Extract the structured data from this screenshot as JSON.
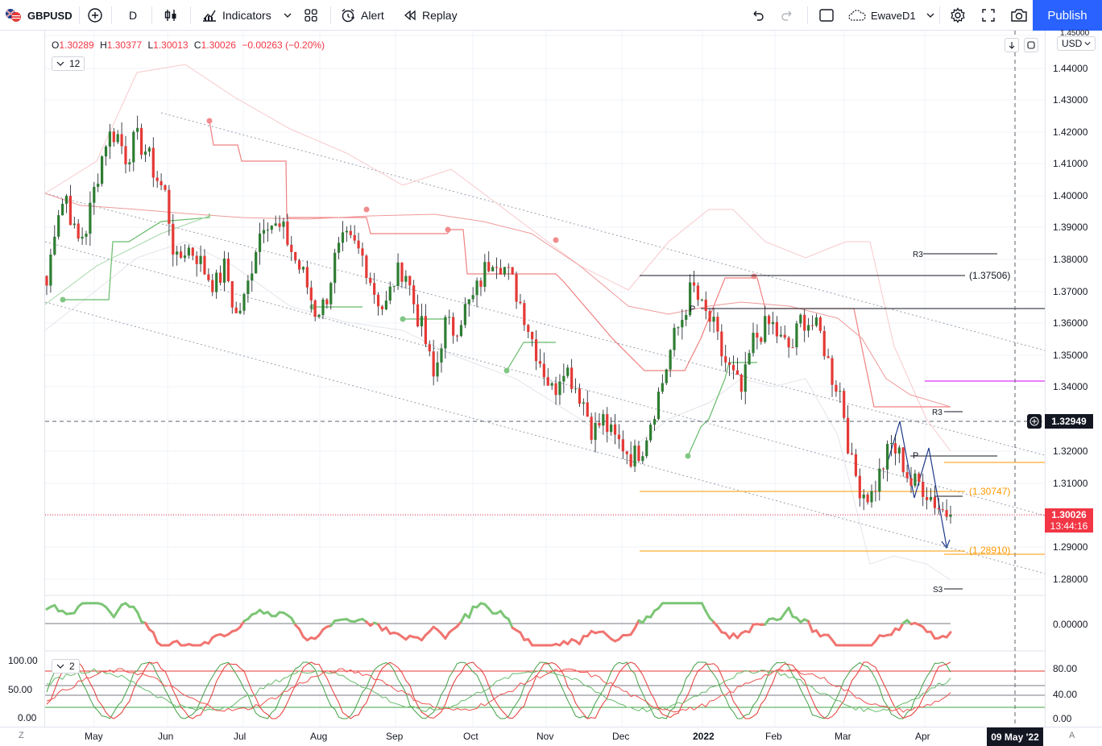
{
  "toolbar": {
    "symbol": "GBPUSD",
    "interval": "D",
    "indicators_label": "Indicators",
    "alert_label": "Alert",
    "replay_label": "Replay",
    "layout_name": "EwaveD1",
    "publish_label": "Publish"
  },
  "legend": {
    "open_key": "O",
    "open": "1.30289",
    "high_key": "H",
    "high": "1.30377",
    "low_key": "L",
    "low": "1.30013",
    "close_key": "C",
    "close": "1.30026",
    "change": "−0.00263 (−0.20%)",
    "count_badge": "12",
    "osc_badge": "2"
  },
  "price_axis": {
    "currency": "USD",
    "labels": [
      "1.45000",
      "1.44000",
      "1.43000",
      "1.42000",
      "1.41000",
      "1.40000",
      "1.39000",
      "1.38000",
      "1.37000",
      "1.36000",
      "1.35000",
      "1.34000",
      "1.33000",
      "1.32000",
      "1.31000",
      "1.30000",
      "1.29000",
      "1.28000"
    ],
    "crosshair_price": "1.32949",
    "last_price": "1.30026",
    "countdown": "13:44:16"
  },
  "osc_axis": {
    "label": "0.00000"
  },
  "stoch_axis": {
    "right_labels": [
      "80.00",
      "40.00",
      "0.00"
    ],
    "left_labels": [
      "100.00",
      "50.00",
      "0.00"
    ]
  },
  "time_axis": {
    "labels": [
      "May",
      "Jun",
      "Jul",
      "Aug",
      "Sep",
      "Oct",
      "Nov",
      "Dec",
      "2022",
      "Feb",
      "Mar",
      "Apr"
    ],
    "crosshair_date": "09 May '22"
  },
  "annotations": {
    "fib_1": "(1.37506)",
    "fib_2": "(1.30747)",
    "fib_3": "(1.28910)",
    "pivot_1": "P",
    "pivot_2": "P",
    "r3_1": "R3",
    "r3_2": "R3",
    "s3": "S3"
  },
  "chart_data": {
    "type": "candlestick",
    "symbol": "GBPUSD",
    "timeframe": "D",
    "y_range": [
      1.275,
      1.45
    ],
    "x_range": [
      "Apr 2021",
      "May 2022"
    ],
    "months": [
      "May",
      "Jun",
      "Jul",
      "Aug",
      "Sep",
      "Oct",
      "Nov",
      "Dec",
      "2022",
      "Feb",
      "Mar",
      "Apr"
    ],
    "ohlc_last": {
      "open": 1.30289,
      "high": 1.30377,
      "low": 1.30013,
      "close": 1.30026
    },
    "price_path": [
      1.372,
      1.395,
      1.4,
      1.385,
      1.39,
      1.405,
      1.418,
      1.42,
      1.412,
      1.418,
      1.414,
      1.406,
      1.4,
      1.378,
      1.384,
      1.382,
      1.376,
      1.372,
      1.378,
      1.362,
      1.368,
      1.384,
      1.394,
      1.39,
      1.388,
      1.38,
      1.374,
      1.364,
      1.366,
      1.38,
      1.386,
      1.384,
      1.38,
      1.37,
      1.364,
      1.374,
      1.378,
      1.366,
      1.356,
      1.342,
      1.36,
      1.358,
      1.364,
      1.368,
      1.376,
      1.382,
      1.378,
      1.372,
      1.364,
      1.354,
      1.346,
      1.338,
      1.348,
      1.342,
      1.336,
      1.326,
      1.33,
      1.324,
      1.322,
      1.318,
      1.322,
      1.332,
      1.342,
      1.354,
      1.362,
      1.372,
      1.364,
      1.36,
      1.35,
      1.344,
      1.338,
      1.354,
      1.358,
      1.36,
      1.354,
      1.352,
      1.362,
      1.36,
      1.356,
      1.344,
      1.338,
      1.316,
      1.308,
      1.306,
      1.314,
      1.322,
      1.318,
      1.31,
      1.31,
      1.306,
      1.302,
      1.3003
    ],
    "levels": [
      {
        "label": "(1.37506)",
        "value": 1.37506
      },
      {
        "label": "(1.30747)",
        "value": 1.30747
      },
      {
        "label": "(1.28910)",
        "value": 1.2891
      },
      {
        "label": "1.32949",
        "value": 1.32949
      },
      {
        "label": "1.30026",
        "value": 1.30026
      }
    ]
  },
  "colors": {
    "up": "#26a69a",
    "up_green": "#2e7d32",
    "down": "#e53935",
    "accent": "#2962ff",
    "last_price": "#f23645"
  }
}
